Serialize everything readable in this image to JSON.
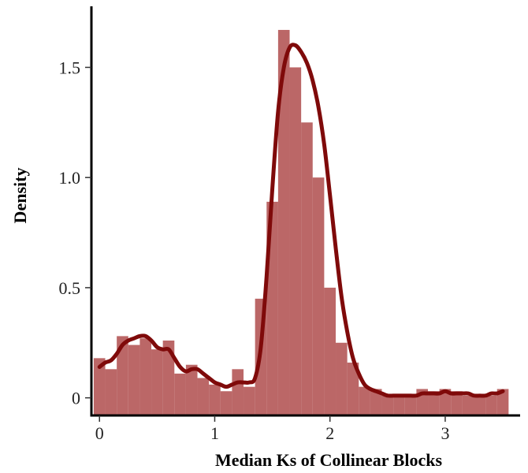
{
  "chart_data": {
    "type": "bar",
    "subtype": "histogram with density curve overlay",
    "xlabel": "Median Ks of Collinear Blocks",
    "ylabel": "Density",
    "xlim": [
      -0.07,
      3.65
    ],
    "ylim": [
      -0.08,
      1.77
    ],
    "x_ticks": [
      0,
      1,
      2,
      3
    ],
    "x_tick_labels": [
      "0",
      "1",
      "2",
      "3"
    ],
    "y_ticks": [
      0,
      0.5,
      1.0,
      1.5
    ],
    "y_tick_labels": [
      "0",
      "0.5",
      "1.0",
      "1.5"
    ],
    "grid": false,
    "legend": "none",
    "colors": {
      "bars": "#a83c3c",
      "bar_opacity": 0.78,
      "curve": "#7f0a0a",
      "axis": "#000000"
    },
    "bins": {
      "width": 0.1,
      "edges_start": -0.05,
      "centers": [
        0,
        0.1,
        0.2,
        0.3,
        0.4,
        0.5,
        0.6,
        0.7,
        0.8,
        0.9,
        1.0,
        1.1,
        1.2,
        1.3,
        1.4,
        1.5,
        1.6,
        1.7,
        1.8,
        1.9,
        2.0,
        2.1,
        2.2,
        2.3,
        2.4,
        2.5,
        2.6,
        2.7,
        2.8,
        2.9,
        3.0,
        3.1,
        3.2,
        3.3,
        3.4,
        3.5
      ],
      "values": [
        0.18,
        0.13,
        0.28,
        0.24,
        0.27,
        0.22,
        0.26,
        0.11,
        0.15,
        0.09,
        0.06,
        0.03,
        0.13,
        0.05,
        0.45,
        0.89,
        1.67,
        1.5,
        1.25,
        1.0,
        0.5,
        0.25,
        0.16,
        0.05,
        0.04,
        0.01,
        0.01,
        0.01,
        0.04,
        0.03,
        0.04,
        0.03,
        0.01,
        0.01,
        0.01,
        0.04
      ]
    },
    "density_curve": {
      "x": [
        0,
        0.05,
        0.1,
        0.15,
        0.2,
        0.25,
        0.3,
        0.35,
        0.4,
        0.45,
        0.5,
        0.55,
        0.6,
        0.65,
        0.7,
        0.75,
        0.8,
        0.85,
        0.9,
        0.95,
        1.0,
        1.05,
        1.1,
        1.15,
        1.2,
        1.25,
        1.3,
        1.35,
        1.4,
        1.45,
        1.5,
        1.55,
        1.6,
        1.65,
        1.7,
        1.75,
        1.8,
        1.85,
        1.9,
        1.95,
        2.0,
        2.05,
        2.1,
        2.15,
        2.2,
        2.25,
        2.3,
        2.35,
        2.4,
        2.45,
        2.5,
        2.55,
        2.6,
        2.65,
        2.7,
        2.75,
        2.8,
        2.85,
        2.9,
        2.95,
        3.0,
        3.05,
        3.1,
        3.15,
        3.2,
        3.25,
        3.3,
        3.35,
        3.4,
        3.45,
        3.5
      ],
      "y": [
        0.14,
        0.16,
        0.17,
        0.2,
        0.24,
        0.26,
        0.27,
        0.28,
        0.28,
        0.26,
        0.23,
        0.22,
        0.22,
        0.18,
        0.14,
        0.12,
        0.13,
        0.13,
        0.11,
        0.09,
        0.07,
        0.06,
        0.05,
        0.06,
        0.07,
        0.07,
        0.07,
        0.09,
        0.23,
        0.55,
        0.95,
        1.3,
        1.5,
        1.59,
        1.6,
        1.57,
        1.52,
        1.44,
        1.32,
        1.15,
        0.92,
        0.68,
        0.46,
        0.3,
        0.18,
        0.11,
        0.06,
        0.04,
        0.03,
        0.02,
        0.01,
        0.01,
        0.01,
        0.01,
        0.01,
        0.01,
        0.02,
        0.02,
        0.02,
        0.02,
        0.03,
        0.02,
        0.02,
        0.02,
        0.02,
        0.01,
        0.01,
        0.01,
        0.02,
        0.02,
        0.03
      ]
    }
  }
}
